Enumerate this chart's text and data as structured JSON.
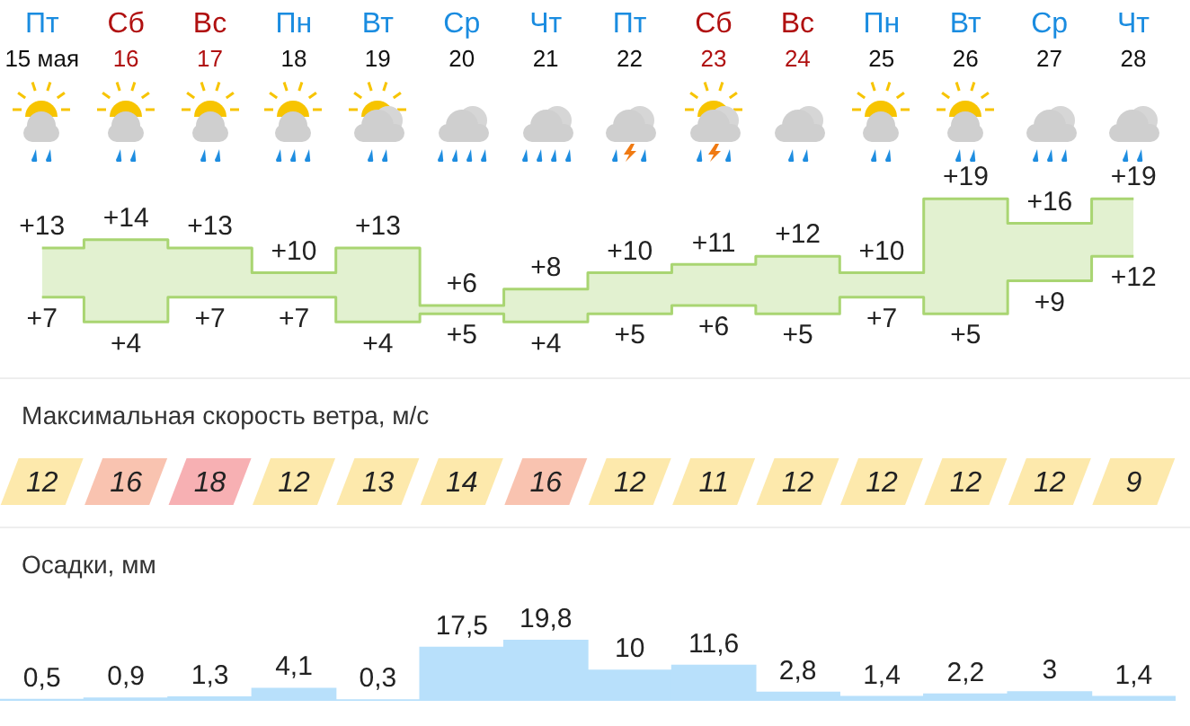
{
  "chart_data": [
    {
      "type": "step",
      "categories": [
        "Пт 15 мая",
        "Сб 16",
        "Вс 17",
        "Пн 18",
        "Вт 19",
        "Ср 20",
        "Чт 21",
        "Пт 22",
        "Сб 23",
        "Вс 24",
        "Пн 25",
        "Вт 26",
        "Ср 27",
        "Чт 28"
      ],
      "series": [
        {
          "color": "#a9d572",
          "values": [
            13,
            14,
            13,
            10,
            13,
            6,
            8,
            10,
            11,
            12,
            10,
            19,
            16,
            19
          ],
          "value_labels": [
            "+13",
            "+14",
            "+13",
            "+10",
            "+13",
            "+6",
            "+8",
            "+10",
            "+11",
            "+12",
            "+10",
            "+19",
            "+16",
            "+19"
          ]
        },
        {
          "color": "#a9d572",
          "values": [
            7,
            4,
            7,
            7,
            4,
            5,
            4,
            5,
            6,
            5,
            7,
            5,
            9,
            12
          ],
          "value_labels": [
            "+7",
            "+4",
            "+7",
            "+7",
            "+4",
            "+5",
            "+4",
            "+5",
            "+6",
            "+5",
            "+7",
            "+5",
            "+9",
            "+12"
          ]
        }
      ],
      "legend": false
    },
    {
      "type": "other",
      "title": "Максимальная скорость ветра, м/с",
      "categories": [
        null,
        null,
        null,
        null,
        null,
        null,
        null,
        null,
        null,
        null,
        null,
        null,
        null,
        null
      ],
      "values": [
        12,
        16,
        18,
        12,
        13,
        14,
        16,
        12,
        11,
        12,
        12,
        12,
        12,
        9
      ],
      "data_labels": true,
      "colors": [
        "#fde9ac",
        "#f9c3b0",
        "#f7b0b3",
        "#fde9ac",
        "#fde9ac",
        "#fde9ac",
        "#f9c3b0",
        "#fde9ac",
        "#fde9ac",
        "#fde9ac",
        "#fde9ac",
        "#fde9ac",
        "#fde9ac",
        "#fde9ac"
      ]
    },
    {
      "type": "bar",
      "title": "Осадки, мм",
      "categories": [
        null,
        null,
        null,
        null,
        null,
        null,
        null,
        null,
        null,
        null,
        null,
        null,
        null,
        null
      ],
      "values": [
        0.5,
        0.9,
        1.3,
        4.1,
        0.3,
        17.5,
        19.8,
        10,
        11.6,
        2.8,
        1.4,
        2.2,
        3,
        1.4
      ],
      "value_labels": [
        "0,5",
        "0,9",
        "1,3",
        "4,1",
        "0,3",
        "17,5",
        "19,8",
        "10",
        "11,6",
        "2,8",
        "1,4",
        "2,2",
        "3",
        "1,4"
      ],
      "color": "#b8e0fb",
      "legend": false
    }
  ]
}
